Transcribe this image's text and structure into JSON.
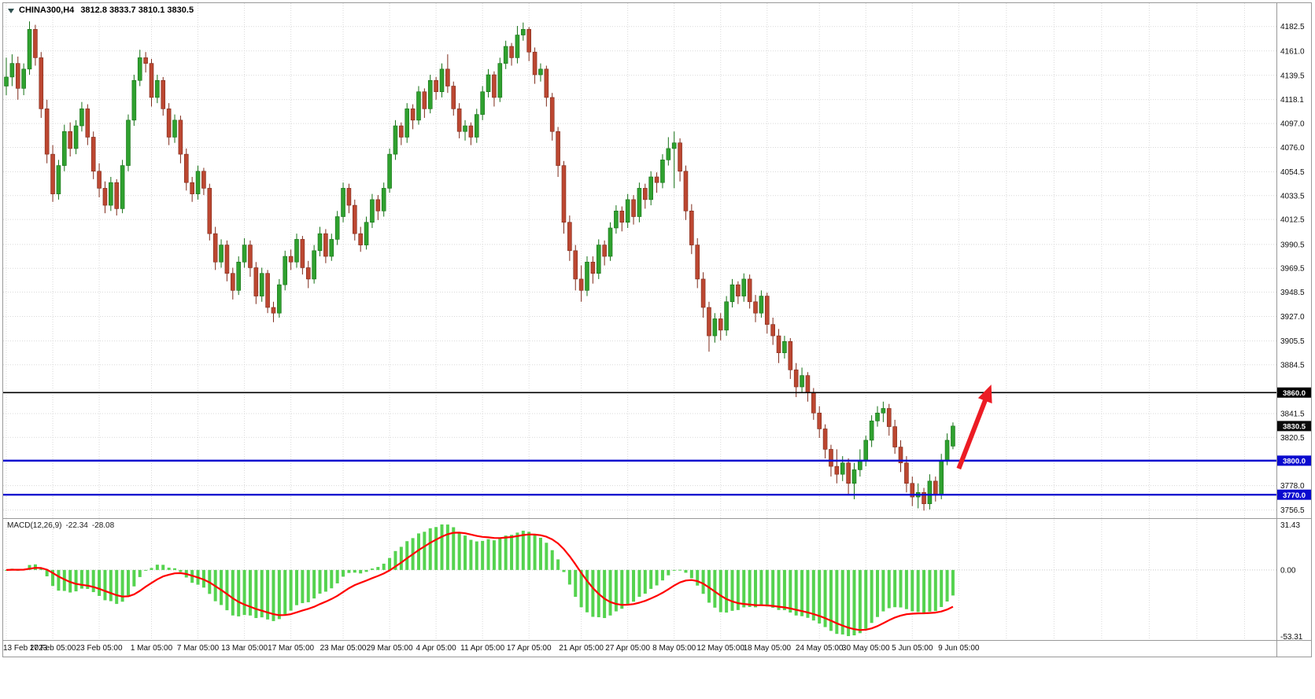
{
  "window": {
    "symbol_period": "CHINA300,H4",
    "ohlc_text": "3812.8 3833.7 3810.1 3830.5"
  },
  "colors": {
    "bull_fill": "#2FA12F",
    "bull_stroke": "#157015",
    "bear_fill": "#BC4731",
    "bear_stroke": "#7E2A1A",
    "grid": "#D9D9D9",
    "border": "#999999",
    "background": "#FFFFFF",
    "text": "#111111"
  },
  "chart_data": {
    "type": "candlestick",
    "symbol": "CHINA300",
    "timeframe": "H4",
    "last_ohlc": {
      "open": 3812.8,
      "high": 3833.7,
      "low": 3810.1,
      "close": 3830.5
    },
    "price_range_visible": {
      "max": 4192,
      "min": 3749
    },
    "price_axis_ticks": [
      "4182.5",
      "4161.0",
      "4139.5",
      "4118.1",
      "4097.0",
      "4076.0",
      "4054.5",
      "4033.5",
      "4012.5",
      "3990.5",
      "3969.5",
      "3948.5",
      "3927.0",
      "3905.5",
      "3884.5",
      "3841.5",
      "3820.5",
      "3778.0",
      "3756.5"
    ],
    "time_axis_labels": [
      {
        "index": 0,
        "label": "13 Feb 2023"
      },
      {
        "index": 8,
        "label": "17 Feb 05:00"
      },
      {
        "index": 16,
        "label": "23 Feb 05:00"
      },
      {
        "index": 25,
        "label": "1 Mar 05:00"
      },
      {
        "index": 33,
        "label": "7 Mar 05:00"
      },
      {
        "index": 41,
        "label": "13 Mar 05:00"
      },
      {
        "index": 49,
        "label": "17 Mar 05:00"
      },
      {
        "index": 58,
        "label": "23 Mar 05:00"
      },
      {
        "index": 66,
        "label": "29 Mar 05:00"
      },
      {
        "index": 74,
        "label": "4 Apr 05:00"
      },
      {
        "index": 82,
        "label": "11 Apr 05:00"
      },
      {
        "index": 90,
        "label": "17 Apr 05:00"
      },
      {
        "index": 99,
        "label": "21 Apr 05:00"
      },
      {
        "index": 107,
        "label": "27 Apr 05:00"
      },
      {
        "index": 115,
        "label": "8 May 05:00"
      },
      {
        "index": 123,
        "label": "12 May 05:00"
      },
      {
        "index": 131,
        "label": "18 May 05:00"
      },
      {
        "index": 140,
        "label": "24 May 05:00"
      },
      {
        "index": 148,
        "label": "30 May 05:00"
      },
      {
        "index": 156,
        "label": "5 Jun 05:00"
      },
      {
        "index": 164,
        "label": "9 Jun 05:00"
      }
    ],
    "horizontal_lines": [
      {
        "value": 3860.0,
        "label": "3860.0",
        "color": "#000000",
        "width": 1.6
      },
      {
        "value": 3800.0,
        "label": "3800.0",
        "color": "#0A0ACF",
        "width": 2.4
      },
      {
        "value": 3770.0,
        "label": "3770.0",
        "color": "#0A0ACF",
        "width": 2.4
      }
    ],
    "current_price": {
      "value": 3830.5,
      "label": "3830.5",
      "tag_color": "#0A0A0A"
    },
    "macd": {
      "label": "MACD(12,26,9)",
      "main_value": "-22.34",
      "signal_value": "-28.08",
      "axis_max": "31.43",
      "axis_zero": "0.00",
      "axis_min": "-53.31",
      "histogram_color": "#55D34F",
      "signal_color": "#FF0000"
    },
    "arrow": {
      "from": {
        "index": 164.0,
        "price": 3793
      },
      "to": {
        "index": 169.6,
        "price": 3867
      },
      "color": "#EC1C24"
    },
    "candles": [
      [
        4130,
        4155,
        4122,
        4138
      ],
      [
        4138,
        4158,
        4130,
        4150
      ],
      [
        4150,
        4156,
        4118,
        4128
      ],
      [
        4128,
        4150,
        4122,
        4145
      ],
      [
        4145,
        4187,
        4140,
        4180
      ],
      [
        4180,
        4184,
        4148,
        4155
      ],
      [
        4155,
        4160,
        4102,
        4110
      ],
      [
        4110,
        4118,
        4062,
        4070
      ],
      [
        4070,
        4078,
        4028,
        4035
      ],
      [
        4035,
        4065,
        4030,
        4060
      ],
      [
        4060,
        4096,
        4055,
        4090
      ],
      [
        4090,
        4098,
        4068,
        4075
      ],
      [
        4075,
        4100,
        4070,
        4095
      ],
      [
        4095,
        4116,
        4090,
        4110
      ],
      [
        4110,
        4114,
        4078,
        4085
      ],
      [
        4085,
        4090,
        4048,
        4055
      ],
      [
        4055,
        4062,
        4032,
        4040
      ],
      [
        4040,
        4046,
        4018,
        4025
      ],
      [
        4025,
        4050,
        4020,
        4045
      ],
      [
        4045,
        4048,
        4016,
        4022
      ],
      [
        4022,
        4065,
        4018,
        4060
      ],
      [
        4060,
        4105,
        4055,
        4100
      ],
      [
        4100,
        4140,
        4095,
        4135
      ],
      [
        4135,
        4162,
        4130,
        4155
      ],
      [
        4155,
        4160,
        4142,
        4150
      ],
      [
        4150,
        4154,
        4112,
        4120
      ],
      [
        4120,
        4140,
        4115,
        4135
      ],
      [
        4135,
        4138,
        4104,
        4110
      ],
      [
        4110,
        4115,
        4078,
        4085
      ],
      [
        4085,
        4105,
        4080,
        4100
      ],
      [
        4100,
        4104,
        4062,
        4070
      ],
      [
        4070,
        4075,
        4038,
        4045
      ],
      [
        4045,
        4050,
        4028,
        4035
      ],
      [
        4035,
        4060,
        4030,
        4055
      ],
      [
        4055,
        4058,
        4034,
        4040
      ],
      [
        4040,
        4044,
        3994,
        4000
      ],
      [
        4000,
        4006,
        3968,
        3975
      ],
      [
        3975,
        3995,
        3970,
        3990
      ],
      [
        3990,
        3994,
        3958,
        3965
      ],
      [
        3965,
        3970,
        3942,
        3950
      ],
      [
        3950,
        3980,
        3946,
        3975
      ],
      [
        3975,
        3996,
        3970,
        3990
      ],
      [
        3990,
        3994,
        3962,
        3970
      ],
      [
        3970,
        3975,
        3938,
        3945
      ],
      [
        3945,
        3970,
        3940,
        3965
      ],
      [
        3965,
        3968,
        3930,
        3935
      ],
      [
        3935,
        3940,
        3922,
        3930
      ],
      [
        3930,
        3960,
        3926,
        3955
      ],
      [
        3955,
        3985,
        3950,
        3980
      ],
      [
        3980,
        3986,
        3968,
        3975
      ],
      [
        3975,
        4000,
        3970,
        3995
      ],
      [
        3995,
        3998,
        3964,
        3970
      ],
      [
        3970,
        3976,
        3952,
        3960
      ],
      [
        3960,
        3990,
        3956,
        3985
      ],
      [
        3985,
        4006,
        3980,
        4000
      ],
      [
        4000,
        4004,
        3974,
        3980
      ],
      [
        3980,
        4000,
        3976,
        3995
      ],
      [
        3995,
        4020,
        3990,
        4015
      ],
      [
        4015,
        4045,
        4010,
        4040
      ],
      [
        4040,
        4044,
        4018,
        4025
      ],
      [
        4025,
        4030,
        3994,
        4000
      ],
      [
        4000,
        4006,
        3984,
        3990
      ],
      [
        3990,
        4015,
        3986,
        4010
      ],
      [
        4010,
        4035,
        4005,
        4030
      ],
      [
        4030,
        4034,
        4012,
        4020
      ],
      [
        4020,
        4045,
        4015,
        4040
      ],
      [
        4040,
        4075,
        4036,
        4070
      ],
      [
        4070,
        4100,
        4065,
        4095
      ],
      [
        4095,
        4098,
        4078,
        4085
      ],
      [
        4085,
        4115,
        4080,
        4110
      ],
      [
        4110,
        4114,
        4092,
        4100
      ],
      [
        4100,
        4130,
        4096,
        4125
      ],
      [
        4125,
        4128,
        4102,
        4110
      ],
      [
        4110,
        4140,
        4106,
        4135
      ],
      [
        4135,
        4138,
        4118,
        4125
      ],
      [
        4125,
        4150,
        4120,
        4145
      ],
      [
        4145,
        4158,
        4124,
        4130
      ],
      [
        4130,
        4134,
        4104,
        4110
      ],
      [
        4110,
        4115,
        4084,
        4090
      ],
      [
        4090,
        4100,
        4082,
        4095
      ],
      [
        4095,
        4098,
        4078,
        4085
      ],
      [
        4085,
        4110,
        4080,
        4105
      ],
      [
        4105,
        4130,
        4100,
        4125
      ],
      [
        4125,
        4145,
        4120,
        4140
      ],
      [
        4140,
        4143,
        4112,
        4120
      ],
      [
        4120,
        4155,
        4116,
        4150
      ],
      [
        4150,
        4170,
        4145,
        4165
      ],
      [
        4165,
        4168,
        4148,
        4155
      ],
      [
        4155,
        4183,
        4150,
        4175
      ],
      [
        4175,
        4186,
        4170,
        4180
      ],
      [
        4180,
        4182,
        4152,
        4160
      ],
      [
        4160,
        4164,
        4132,
        4140
      ],
      [
        4140,
        4150,
        4134,
        4145
      ],
      [
        4145,
        4148,
        4112,
        4120
      ],
      [
        4120,
        4124,
        4082,
        4090
      ],
      [
        4090,
        4094,
        4050,
        4060
      ],
      [
        4060,
        4064,
        4000,
        4010
      ],
      [
        4010,
        4016,
        3976,
        3985
      ],
      [
        3985,
        3990,
        3950,
        3960
      ],
      [
        3960,
        3972,
        3940,
        3950
      ],
      [
        3950,
        3980,
        3945,
        3975
      ],
      [
        3975,
        3980,
        3956,
        3965
      ],
      [
        3965,
        3995,
        3960,
        3990
      ],
      [
        3990,
        3994,
        3972,
        3980
      ],
      [
        3980,
        4010,
        3976,
        4005
      ],
      [
        4005,
        4025,
        4000,
        4020
      ],
      [
        4020,
        4024,
        4002,
        4010
      ],
      [
        4010,
        4035,
        4005,
        4030
      ],
      [
        4030,
        4034,
        4008,
        4015
      ],
      [
        4015,
        4045,
        4010,
        4040
      ],
      [
        4040,
        4044,
        4022,
        4030
      ],
      [
        4030,
        4055,
        4025,
        4050
      ],
      [
        4050,
        4054,
        4036,
        4045
      ],
      [
        4045,
        4070,
        4040,
        4065
      ],
      [
        4065,
        4085,
        4060,
        4075
      ],
      [
        4075,
        4090,
        4040,
        4080
      ],
      [
        4080,
        4084,
        4046,
        4055
      ],
      [
        4055,
        4060,
        4012,
        4020
      ],
      [
        4020,
        4026,
        3982,
        3990
      ],
      [
        3990,
        3996,
        3952,
        3960
      ],
      [
        3960,
        3966,
        3926,
        3935
      ],
      [
        3935,
        3940,
        3896,
        3910
      ],
      [
        3910,
        3930,
        3904,
        3925
      ],
      [
        3925,
        3930,
        3906,
        3915
      ],
      [
        3915,
        3945,
        3910,
        3940
      ],
      [
        3940,
        3960,
        3935,
        3955
      ],
      [
        3955,
        3958,
        3938,
        3945
      ],
      [
        3945,
        3965,
        3940,
        3960
      ],
      [
        3960,
        3964,
        3934,
        3940
      ],
      [
        3940,
        3946,
        3922,
        3930
      ],
      [
        3930,
        3950,
        3926,
        3945
      ],
      [
        3945,
        3948,
        3912,
        3920
      ],
      [
        3920,
        3926,
        3902,
        3910
      ],
      [
        3910,
        3916,
        3886,
        3895
      ],
      [
        3895,
        3910,
        3890,
        3905
      ],
      [
        3905,
        3908,
        3872,
        3880
      ],
      [
        3880,
        3886,
        3856,
        3865
      ],
      [
        3865,
        3882,
        3860,
        3875
      ],
      [
        3875,
        3878,
        3852,
        3860
      ],
      [
        3860,
        3864,
        3836,
        3842
      ],
      [
        3842,
        3848,
        3820,
        3828
      ],
      [
        3828,
        3832,
        3802,
        3810
      ],
      [
        3810,
        3814,
        3786,
        3795
      ],
      [
        3795,
        3810,
        3780,
        3788
      ],
      [
        3788,
        3804,
        3782,
        3798
      ],
      [
        3798,
        3802,
        3770,
        3780
      ],
      [
        3780,
        3798,
        3766,
        3792
      ],
      [
        3792,
        3810,
        3786,
        3800
      ],
      [
        3800,
        3822,
        3795,
        3818
      ],
      [
        3818,
        3840,
        3812,
        3835
      ],
      [
        3835,
        3848,
        3830,
        3842
      ],
      [
        3842,
        3852,
        3834,
        3846
      ],
      [
        3846,
        3850,
        3822,
        3830
      ],
      [
        3830,
        3836,
        3806,
        3812
      ],
      [
        3812,
        3818,
        3790,
        3798
      ],
      [
        3798,
        3804,
        3772,
        3780
      ],
      [
        3780,
        3786,
        3760,
        3768
      ],
      [
        3768,
        3780,
        3758,
        3772
      ],
      [
        3772,
        3776,
        3756,
        3762
      ],
      [
        3762,
        3788,
        3757,
        3782
      ],
      [
        3782,
        3786,
        3764,
        3770
      ],
      [
        3770,
        3806,
        3766,
        3800
      ],
      [
        3800,
        3824,
        3796,
        3818
      ],
      [
        3812.8,
        3833.7,
        3810.1,
        3830.5
      ]
    ]
  }
}
